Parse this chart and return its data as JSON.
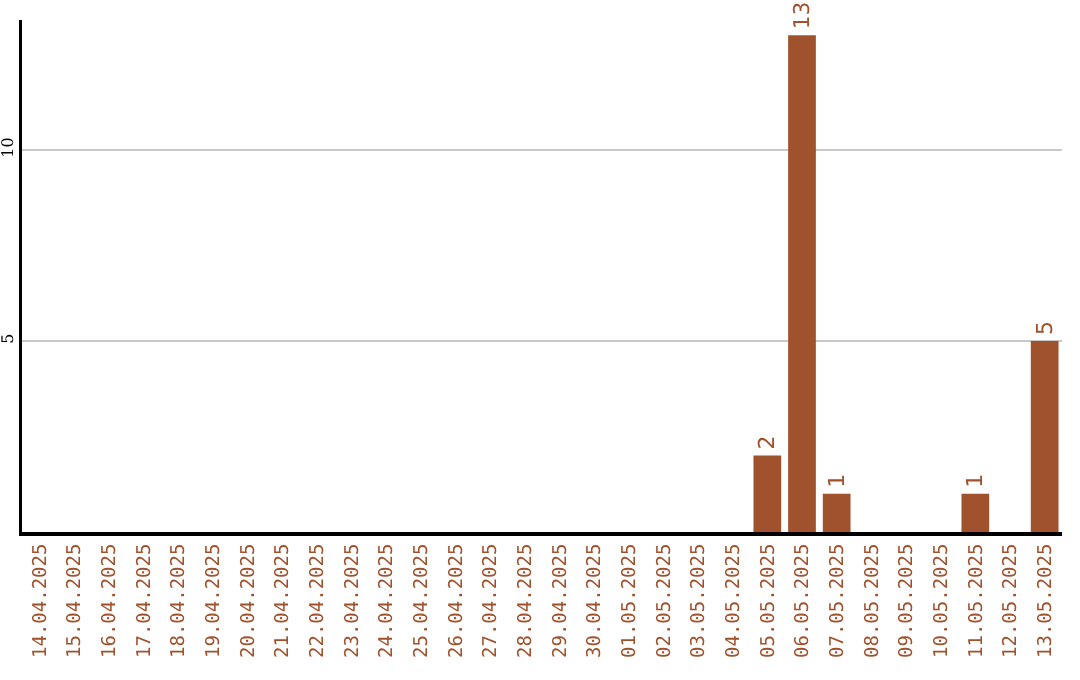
{
  "chart_data": {
    "type": "bar",
    "categories": [
      "14.04.2025",
      "15.04.2025",
      "16.04.2025",
      "17.04.2025",
      "18.04.2025",
      "19.04.2025",
      "20.04.2025",
      "21.04.2025",
      "22.04.2025",
      "23.04.2025",
      "24.04.2025",
      "25.04.2025",
      "26.04.2025",
      "27.04.2025",
      "28.04.2025",
      "29.04.2025",
      "30.04.2025",
      "01.05.2025",
      "02.05.2025",
      "03.05.2025",
      "04.05.2025",
      "05.05.2025",
      "06.05.2025",
      "07.05.2025",
      "08.05.2025",
      "09.05.2025",
      "10.05.2025",
      "11.05.2025",
      "12.05.2025",
      "13.05.2025"
    ],
    "values": [
      0,
      0,
      0,
      0,
      0,
      0,
      0,
      0,
      0,
      0,
      0,
      0,
      0,
      0,
      0,
      0,
      0,
      0,
      0,
      0,
      0,
      2,
      13,
      1,
      0,
      0,
      0,
      1,
      0,
      5
    ],
    "value_labels": [
      null,
      null,
      null,
      null,
      null,
      null,
      null,
      null,
      null,
      null,
      null,
      null,
      null,
      null,
      null,
      null,
      null,
      null,
      null,
      null,
      null,
      "2",
      "13",
      "1",
      null,
      null,
      null,
      "1",
      null,
      "5"
    ],
    "color": "#a0522d",
    "ylim": [
      0,
      13.4
    ],
    "yticks": [
      5,
      10
    ],
    "grid": "y"
  }
}
